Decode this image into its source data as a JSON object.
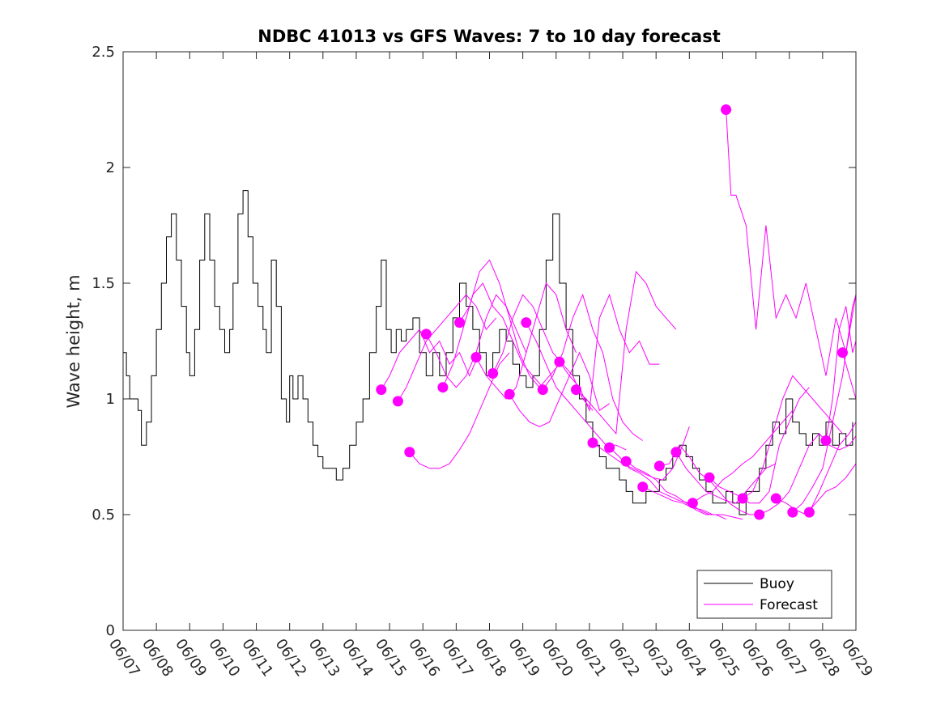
{
  "chart_data": {
    "type": "line",
    "title": "NDBC 41013 vs GFS Waves: 7 to 10 day forecast",
    "xlabel": "",
    "ylabel": "Wave height, m",
    "ylim": [
      0,
      2.5
    ],
    "xlim": [
      "06/07",
      "06/29"
    ],
    "x_ticks": [
      "06/07",
      "06/08",
      "06/09",
      "06/10",
      "06/11",
      "06/12",
      "06/13",
      "06/14",
      "06/15",
      "06/16",
      "06/17",
      "06/18",
      "06/19",
      "06/20",
      "06/21",
      "06/22",
      "06/23",
      "06/24",
      "06/25",
      "06/26",
      "06/27",
      "06/28",
      "06/29"
    ],
    "y_ticks": [
      "0",
      "0.5",
      "1",
      "1.5",
      "2",
      "2.5"
    ],
    "grid": false,
    "legend": {
      "placement": "bottom-right",
      "entries": [
        "Buoy",
        "Forecast"
      ]
    },
    "colors": {
      "buoy": "#000000",
      "forecast": "#ff00ff"
    },
    "buoy": {
      "name": "Buoy",
      "x_days": [
        0,
        0.1,
        0.2,
        0.3,
        0.45,
        0.55,
        0.7,
        0.85,
        1.0,
        1.15,
        1.3,
        1.45,
        1.6,
        1.75,
        1.9,
        2.0,
        2.15,
        2.3,
        2.45,
        2.6,
        2.75,
        2.9,
        3.05,
        3.2,
        3.3,
        3.45,
        3.6,
        3.75,
        3.9,
        4.05,
        4.2,
        4.3,
        4.45,
        4.6,
        4.75,
        4.9,
        5.0,
        5.1,
        5.25,
        5.4,
        5.55,
        5.7,
        5.85,
        6.0,
        6.2,
        6.4,
        6.6,
        6.8,
        7.0,
        7.2,
        7.4,
        7.6,
        7.75,
        7.9,
        8.05,
        8.2,
        8.35,
        8.5,
        8.7,
        8.9,
        9.1,
        9.3,
        9.5,
        9.7,
        9.9,
        10.1,
        10.3,
        10.5,
        10.7,
        10.9,
        11.1,
        11.3,
        11.5,
        11.7,
        11.9,
        12.1,
        12.3,
        12.5,
        12.7,
        12.9,
        13.1,
        13.3,
        13.5,
        13.7,
        13.9,
        14.1,
        14.3,
        14.5,
        14.7,
        14.9,
        15.1,
        15.3,
        15.5,
        15.7,
        15.9,
        16.1,
        16.3,
        16.5,
        16.7,
        16.9,
        17.1,
        17.3,
        17.5,
        17.7,
        17.9,
        18.1,
        18.3,
        18.5,
        18.7,
        18.9,
        19.1,
        19.3,
        19.5,
        19.7,
        19.9,
        20.1,
        20.3,
        20.5,
        20.7,
        20.9,
        21.1,
        21.3,
        21.5,
        21.7,
        21.9
      ],
      "values": [
        1.2,
        1.1,
        1.0,
        1.0,
        0.95,
        0.8,
        0.9,
        1.1,
        1.3,
        1.5,
        1.7,
        1.8,
        1.6,
        1.4,
        1.2,
        1.1,
        1.3,
        1.6,
        1.8,
        1.6,
        1.4,
        1.3,
        1.2,
        1.3,
        1.5,
        1.8,
        1.9,
        1.7,
        1.5,
        1.4,
        1.3,
        1.2,
        1.6,
        1.4,
        1.0,
        0.9,
        1.1,
        1.0,
        1.1,
        1.0,
        0.9,
        0.8,
        0.75,
        0.7,
        0.7,
        0.65,
        0.7,
        0.8,
        0.9,
        1.0,
        1.2,
        1.4,
        1.6,
        1.3,
        1.2,
        1.3,
        1.25,
        1.3,
        1.35,
        1.2,
        1.1,
        1.2,
        1.1,
        1.2,
        1.35,
        1.5,
        1.4,
        1.3,
        1.2,
        1.1,
        1.2,
        1.3,
        1.25,
        1.15,
        1.1,
        1.05,
        1.1,
        1.3,
        1.6,
        1.8,
        1.5,
        1.3,
        1.1,
        1.0,
        0.9,
        0.8,
        0.75,
        0.7,
        0.7,
        0.65,
        0.6,
        0.55,
        0.55,
        0.6,
        0.6,
        0.65,
        0.7,
        0.75,
        0.8,
        0.75,
        0.7,
        0.65,
        0.6,
        0.55,
        0.55,
        0.6,
        0.55,
        0.5,
        0.6,
        0.6,
        0.7,
        0.8,
        0.9,
        0.85,
        1.0,
        0.9,
        0.85,
        0.8,
        0.85,
        0.8,
        0.9,
        0.8,
        0.85,
        0.8,
        0.9
      ]
    },
    "forecast_markers": {
      "name": "Forecast",
      "x_days": [
        7.75,
        8.25,
        8.6,
        9.1,
        9.6,
        10.1,
        10.6,
        11.1,
        11.6,
        12.1,
        12.6,
        13.1,
        13.6,
        14.1,
        14.6,
        15.1,
        15.6,
        16.1,
        16.6,
        17.1,
        17.6,
        18.1,
        18.6,
        19.1,
        19.6,
        20.1,
        20.6,
        21.1,
        21.6
      ],
      "values": [
        1.04,
        0.99,
        0.77,
        1.28,
        1.05,
        1.33,
        1.18,
        1.11,
        1.02,
        1.33,
        1.04,
        1.16,
        1.04,
        0.81,
        0.79,
        0.73,
        0.62,
        0.71,
        0.77,
        0.55,
        0.66,
        2.25,
        0.57,
        0.5,
        0.57,
        0.51,
        0.51,
        0.82,
        1.2
      ]
    },
    "forecast_series": [
      {
        "x": [
          7.75,
          8.0,
          8.3,
          8.6,
          8.9,
          9.2,
          9.5,
          9.8,
          10.1,
          10.4,
          10.7
        ],
        "values": [
          1.04,
          1.1,
          1.2,
          1.25,
          1.3,
          1.2,
          1.25,
          1.15,
          1.2,
          1.1,
          1.2
        ]
      },
      {
        "x": [
          8.25,
          8.5,
          8.8,
          9.1,
          9.4,
          9.7,
          10.0,
          10.3,
          10.6,
          10.9,
          11.2
        ],
        "values": [
          0.99,
          1.05,
          1.15,
          1.25,
          1.3,
          1.35,
          1.4,
          1.45,
          1.4,
          1.3,
          1.35
        ]
      },
      {
        "x": [
          8.6,
          8.9,
          9.2,
          9.5,
          9.8,
          10.1,
          10.4,
          10.7,
          11.0,
          11.3,
          11.6
        ],
        "values": [
          0.77,
          0.72,
          0.7,
          0.7,
          0.72,
          0.78,
          0.85,
          0.95,
          1.05,
          1.15,
          1.2
        ]
      },
      {
        "x": [
          9.1,
          9.4,
          9.7,
          10.0,
          10.3,
          10.6,
          10.9,
          11.2,
          11.5,
          11.8,
          12.1
        ],
        "values": [
          1.28,
          1.2,
          1.1,
          1.05,
          1.1,
          1.2,
          1.35,
          1.45,
          1.4,
          1.3,
          1.2
        ]
      },
      {
        "x": [
          9.6,
          9.9,
          10.2,
          10.5,
          10.8,
          11.1,
          11.4,
          11.7,
          12.0,
          12.3,
          12.6
        ],
        "values": [
          1.05,
          1.15,
          1.3,
          1.45,
          1.5,
          1.4,
          1.35,
          1.25,
          1.15,
          1.1,
          1.05
        ]
      },
      {
        "x": [
          10.1,
          10.4,
          10.7,
          11.0,
          11.3,
          11.6,
          11.9,
          12.2,
          12.5,
          12.8,
          13.1
        ],
        "values": [
          1.33,
          1.4,
          1.55,
          1.6,
          1.5,
          1.35,
          1.2,
          1.1,
          1.05,
          1.1,
          1.15
        ]
      },
      {
        "x": [
          10.6,
          10.9,
          11.2,
          11.5,
          11.8,
          12.1,
          12.4,
          12.7,
          13.0,
          13.3,
          13.6
        ],
        "values": [
          1.18,
          1.1,
          1.05,
          1.0,
          1.05,
          1.2,
          1.35,
          1.5,
          1.45,
          1.3,
          1.2
        ]
      },
      {
        "x": [
          11.1,
          11.4,
          11.7,
          12.0,
          12.3,
          12.6,
          12.9,
          13.2,
          13.5,
          13.8,
          14.1
        ],
        "values": [
          1.11,
          1.2,
          1.35,
          1.45,
          1.4,
          1.3,
          1.2,
          1.15,
          1.1,
          1.0,
          0.95
        ]
      },
      {
        "x": [
          11.6,
          11.9,
          12.2,
          12.5,
          12.8,
          13.1,
          13.4,
          13.7,
          14.0,
          14.3,
          14.6
        ],
        "values": [
          1.02,
          0.95,
          0.9,
          0.88,
          0.9,
          1.0,
          1.1,
          1.2,
          1.1,
          0.95,
          0.98
        ]
      },
      {
        "x": [
          12.1,
          12.4,
          12.7,
          13.0,
          13.3,
          13.6,
          13.9,
          14.2,
          14.5,
          14.8,
          15.1
        ],
        "values": [
          1.33,
          1.25,
          1.15,
          1.05,
          1.0,
          0.95,
          0.9,
          0.85,
          0.8,
          0.8,
          0.78
        ]
      },
      {
        "x": [
          12.6,
          12.9,
          13.2,
          13.5,
          13.8,
          14.1,
          14.4,
          14.7,
          15.0,
          15.3,
          15.6
        ],
        "values": [
          1.04,
          1.1,
          1.2,
          1.35,
          1.45,
          1.3,
          1.2,
          1.0,
          0.9,
          0.85,
          0.82
        ]
      },
      {
        "x": [
          13.1,
          13.4,
          13.7,
          14.0,
          14.3,
          14.6,
          14.9,
          15.2,
          15.5,
          15.8,
          16.1
        ],
        "values": [
          1.16,
          1.1,
          1.05,
          0.95,
          1.35,
          1.45,
          1.3,
          1.2,
          1.25,
          1.15,
          1.15
        ]
      },
      {
        "x": [
          13.6,
          13.9,
          14.2,
          14.5,
          14.8,
          15.1,
          15.4,
          15.7,
          16.0,
          16.3,
          16.6
        ],
        "values": [
          1.04,
          1.0,
          0.95,
          0.9,
          0.85,
          1.3,
          1.55,
          1.5,
          1.4,
          1.35,
          1.3
        ]
      },
      {
        "x": [
          14.1,
          14.4,
          14.7,
          15.0,
          15.3,
          15.6,
          15.9,
          16.2,
          16.5,
          16.8,
          17.0
        ],
        "values": [
          0.81,
          0.78,
          0.75,
          0.72,
          0.7,
          0.68,
          0.66,
          0.65,
          0.7,
          0.8,
          0.88
        ]
      },
      {
        "x": [
          14.6,
          14.9,
          15.2,
          15.5,
          15.8,
          16.1,
          16.4,
          16.7,
          17.0,
          17.3,
          17.6
        ],
        "values": [
          0.79,
          0.75,
          0.7,
          0.68,
          0.65,
          0.6,
          0.58,
          0.56,
          0.55,
          0.52,
          0.5
        ]
      },
      {
        "x": [
          15.1,
          15.4,
          15.7,
          16.0,
          16.3,
          16.6,
          16.9,
          17.2,
          17.5,
          17.8,
          18.1
        ],
        "values": [
          0.73,
          0.7,
          0.68,
          0.65,
          0.6,
          0.58,
          0.55,
          0.52,
          0.5,
          0.5,
          0.48
        ]
      },
      {
        "x": [
          15.6,
          15.9,
          16.2,
          16.5,
          16.8,
          17.1,
          17.4,
          17.7,
          18.0,
          18.3,
          18.6
        ],
        "values": [
          0.62,
          0.6,
          0.58,
          0.56,
          0.55,
          0.53,
          0.52,
          0.5,
          0.5,
          0.49,
          0.48
        ]
      },
      {
        "x": [
          16.1,
          16.4,
          16.7,
          17.0,
          17.3,
          17.6,
          17.9,
          18.2,
          18.5,
          18.8,
          19.1
        ],
        "values": [
          0.71,
          0.72,
          0.8,
          0.75,
          0.68,
          0.65,
          0.6,
          0.55,
          0.52,
          0.5,
          0.5
        ]
      },
      {
        "x": [
          16.6,
          16.9,
          17.2,
          17.5,
          17.8,
          18.1,
          18.4,
          18.7,
          19.0,
          19.3,
          19.6
        ],
        "values": [
          0.77,
          0.7,
          0.65,
          0.6,
          0.58,
          0.56,
          0.55,
          0.6,
          0.65,
          0.7,
          0.72
        ]
      },
      {
        "x": [
          17.1,
          17.4,
          17.7,
          18.0,
          18.3,
          18.6,
          18.9,
          19.2,
          19.5,
          19.8,
          20.1
        ],
        "values": [
          0.55,
          0.58,
          0.6,
          0.65,
          0.68,
          0.72,
          0.75,
          0.8,
          0.85,
          0.9,
          0.95
        ]
      },
      {
        "x": [
          17.6,
          17.9,
          18.2,
          18.5,
          18.8,
          19.1,
          19.4,
          19.7,
          20.0,
          20.3,
          20.6
        ],
        "values": [
          0.66,
          0.62,
          0.6,
          0.58,
          0.55,
          0.55,
          0.6,
          0.8,
          0.9,
          1.0,
          1.05
        ]
      },
      {
        "x": [
          18.1,
          18.25,
          18.4,
          18.7,
          19.0,
          19.3,
          19.6,
          19.9,
          20.2,
          20.5,
          20.8,
          21.1,
          21.4,
          21.7,
          22.0
        ],
        "values": [
          2.25,
          1.88,
          1.88,
          1.75,
          1.3,
          1.75,
          1.35,
          1.45,
          1.35,
          1.5,
          1.3,
          1.1,
          1.35,
          1.2,
          1.45
        ]
      },
      {
        "x": [
          18.6,
          18.9,
          19.2,
          19.5,
          19.8,
          20.1,
          20.4,
          20.7,
          21.0,
          21.3,
          21.6
        ],
        "values": [
          0.57,
          0.6,
          0.7,
          0.85,
          1.0,
          1.1,
          1.05,
          1.0,
          0.95,
          0.9,
          0.85
        ]
      },
      {
        "x": [
          19.1,
          19.4,
          19.7,
          20.0,
          20.3,
          20.6,
          20.9,
          21.2,
          21.5,
          21.8,
          22.0
        ],
        "values": [
          0.5,
          0.52,
          0.55,
          0.6,
          0.7,
          0.8,
          0.85,
          0.8,
          0.78,
          0.8,
          0.84
        ]
      },
      {
        "x": [
          19.6,
          19.9,
          20.2,
          20.5,
          20.8,
          21.1,
          21.4,
          21.7,
          22.0
        ],
        "values": [
          0.57,
          0.55,
          0.52,
          0.5,
          0.55,
          0.6,
          0.62,
          0.66,
          0.72
        ]
      },
      {
        "x": [
          20.1,
          20.4,
          20.7,
          21.0,
          21.3,
          21.6,
          21.9,
          22.0
        ],
        "values": [
          0.51,
          0.55,
          0.62,
          0.7,
          0.9,
          1.1,
          1.4,
          1.45
        ]
      },
      {
        "x": [
          20.6,
          20.9,
          21.2,
          21.5,
          21.8,
          22.0
        ],
        "values": [
          0.51,
          0.6,
          0.7,
          0.8,
          0.85,
          0.9
        ]
      },
      {
        "x": [
          21.1,
          21.3,
          21.5,
          21.7,
          21.9,
          22.0
        ],
        "values": [
          0.82,
          1.0,
          1.3,
          1.4,
          1.2,
          1.25
        ]
      },
      {
        "x": [
          21.6,
          21.8,
          22.0
        ],
        "values": [
          1.2,
          1.1,
          1.0
        ]
      }
    ]
  }
}
